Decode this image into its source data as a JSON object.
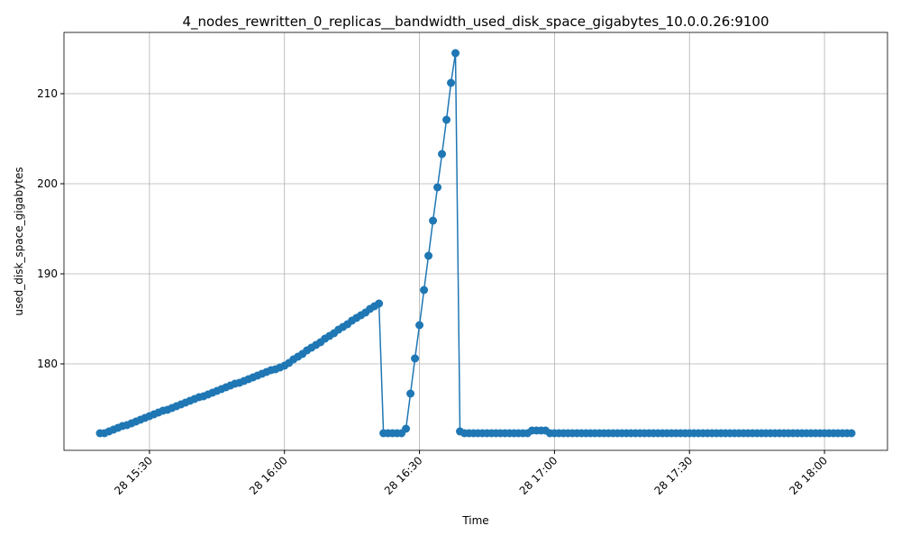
{
  "chart_data": {
    "type": "line",
    "title": "4_nodes_rewritten_0_replicas__bandwidth_used_disk_space_gigabytes_10.0.0.26:9100",
    "x_label": "Time",
    "y_label": "used_disk_space_gigabytes",
    "x": [
      "28 15:19",
      "28 15:20",
      "28 15:21",
      "28 15:22",
      "28 15:23",
      "28 15:24",
      "28 15:25",
      "28 15:26",
      "28 15:27",
      "28 15:28",
      "28 15:29",
      "28 15:30",
      "28 15:31",
      "28 15:32",
      "28 15:33",
      "28 15:34",
      "28 15:35",
      "28 15:36",
      "28 15:37",
      "28 15:38",
      "28 15:39",
      "28 15:40",
      "28 15:41",
      "28 15:42",
      "28 15:43",
      "28 15:44",
      "28 15:45",
      "28 15:46",
      "28 15:47",
      "28 15:48",
      "28 15:49",
      "28 15:50",
      "28 15:51",
      "28 15:52",
      "28 15:53",
      "28 15:54",
      "28 15:55",
      "28 15:56",
      "28 15:57",
      "28 15:58",
      "28 15:59",
      "28 16:00",
      "28 16:01",
      "28 16:02",
      "28 16:03",
      "28 16:04",
      "28 16:05",
      "28 16:06",
      "28 16:07",
      "28 16:08",
      "28 16:09",
      "28 16:10",
      "28 16:11",
      "28 16:12",
      "28 16:13",
      "28 16:14",
      "28 16:15",
      "28 16:16",
      "28 16:17",
      "28 16:18",
      "28 16:19",
      "28 16:20",
      "28 16:21",
      "28 16:22",
      "28 16:23",
      "28 16:24",
      "28 16:25",
      "28 16:26",
      "28 16:27",
      "28 16:28",
      "28 16:29",
      "28 16:30",
      "28 16:31",
      "28 16:32",
      "28 16:33",
      "28 16:34",
      "28 16:35",
      "28 16:36",
      "28 16:37",
      "28 16:38",
      "28 16:39",
      "28 16:40",
      "28 16:41",
      "28 16:42",
      "28 16:43",
      "28 16:44",
      "28 16:45",
      "28 16:46",
      "28 16:47",
      "28 16:48",
      "28 16:49",
      "28 16:50",
      "28 16:51",
      "28 16:52",
      "28 16:53",
      "28 16:54",
      "28 16:55",
      "28 16:56",
      "28 16:57",
      "28 16:58",
      "28 16:59",
      "28 17:00",
      "28 17:01",
      "28 17:02",
      "28 17:03",
      "28 17:04",
      "28 17:05",
      "28 17:06",
      "28 17:07",
      "28 17:08",
      "28 17:09",
      "28 17:10",
      "28 17:11",
      "28 17:12",
      "28 17:13",
      "28 17:14",
      "28 17:15",
      "28 17:16",
      "28 17:17",
      "28 17:18",
      "28 17:19",
      "28 17:20",
      "28 17:21",
      "28 17:22",
      "28 17:23",
      "28 17:24",
      "28 17:25",
      "28 17:26",
      "28 17:27",
      "28 17:28",
      "28 17:29",
      "28 17:30",
      "28 17:31",
      "28 17:32",
      "28 17:33",
      "28 17:34",
      "28 17:35",
      "28 17:36",
      "28 17:37",
      "28 17:38",
      "28 17:39",
      "28 17:40",
      "28 17:41",
      "28 17:42",
      "28 17:43",
      "28 17:44",
      "28 17:45",
      "28 17:46",
      "28 17:47",
      "28 17:48",
      "28 17:49",
      "28 17:50",
      "28 17:51",
      "28 17:52",
      "28 17:53",
      "28 17:54",
      "28 17:55",
      "28 17:56",
      "28 17:57",
      "28 17:58",
      "28 17:59",
      "28 18:00",
      "28 18:01",
      "28 18:02",
      "28 18:03",
      "28 18:04",
      "28 18:05",
      "28 18:06"
    ],
    "series": [
      {
        "color": "#1f77b4",
        "values": [
          172.3,
          172.3,
          172.5,
          172.7,
          172.9,
          173.1,
          173.2,
          173.4,
          173.6,
          173.8,
          174.0,
          174.2,
          174.4,
          174.6,
          174.8,
          174.9,
          175.1,
          175.3,
          175.5,
          175.7,
          175.9,
          176.1,
          176.3,
          176.4,
          176.6,
          176.8,
          177.0,
          177.2,
          177.4,
          177.6,
          177.8,
          177.9,
          178.1,
          178.3,
          178.5,
          178.7,
          178.9,
          179.1,
          179.3,
          179.4,
          179.6,
          179.8,
          180.1,
          180.5,
          180.8,
          181.1,
          181.5,
          181.8,
          182.1,
          182.4,
          182.8,
          183.1,
          183.4,
          183.8,
          184.1,
          184.4,
          184.8,
          185.1,
          185.4,
          185.7,
          186.1,
          186.4,
          186.7,
          172.3,
          172.3,
          172.3,
          172.3,
          172.3,
          172.8,
          176.7,
          180.6,
          184.3,
          188.2,
          192.0,
          195.9,
          199.6,
          203.3,
          207.1,
          211.2,
          214.5,
          172.5,
          172.3,
          172.3,
          172.3,
          172.3,
          172.3,
          172.3,
          172.3,
          172.3,
          172.3,
          172.3,
          172.3,
          172.3,
          172.3,
          172.3,
          172.3,
          172.6,
          172.6,
          172.6,
          172.6,
          172.3,
          172.3,
          172.3,
          172.3,
          172.3,
          172.3,
          172.3,
          172.3,
          172.3,
          172.3,
          172.3,
          172.3,
          172.3,
          172.3,
          172.3,
          172.3,
          172.3,
          172.3,
          172.3,
          172.3,
          172.3,
          172.3,
          172.3,
          172.3,
          172.3,
          172.3,
          172.3,
          172.3,
          172.3,
          172.3,
          172.3,
          172.3,
          172.3,
          172.3,
          172.3,
          172.3,
          172.3,
          172.3,
          172.3,
          172.3,
          172.3,
          172.3,
          172.3,
          172.3,
          172.3,
          172.3,
          172.3,
          172.3,
          172.3,
          172.3,
          172.3,
          172.3,
          172.3,
          172.3,
          172.3,
          172.3,
          172.3,
          172.3,
          172.3,
          172.3,
          172.3,
          172.3,
          172.3,
          172.3,
          172.3,
          172.3,
          172.3,
          172.3
        ]
      }
    ],
    "xlim": [
      "28 15:11",
      "28 18:14"
    ],
    "xticks": [
      "28 15:30",
      "28 16:00",
      "28 16:30",
      "28 17:00",
      "28 17:30",
      "28 18:00"
    ],
    "ylim": [
      170.4,
      216.8
    ],
    "yticks": [
      180,
      190,
      200,
      210
    ],
    "grid": true
  }
}
